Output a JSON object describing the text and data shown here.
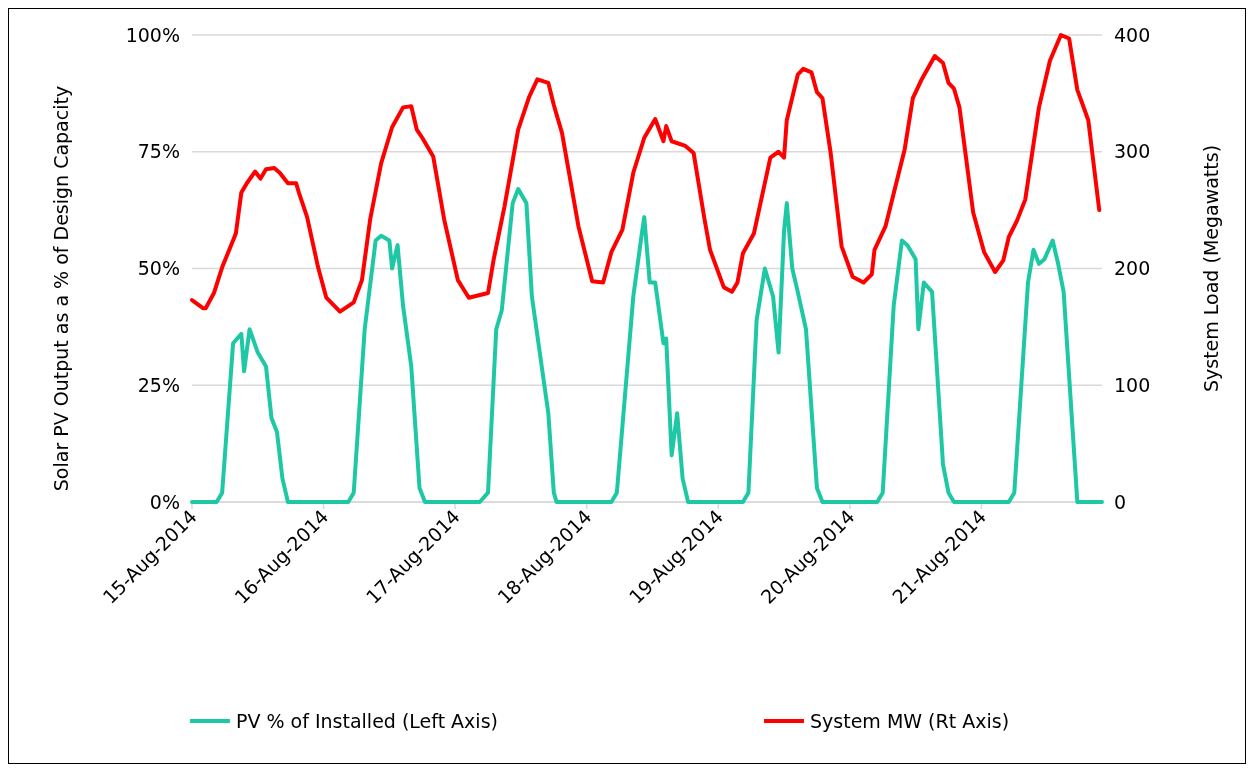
{
  "chart_data": {
    "type": "line",
    "ylabel": "Solar PV Output as a % of Design Capacity",
    "y2label": "System Load (Megawatts)",
    "xlim": [
      "2014-08-15T00:00",
      "2014-08-21T22:00"
    ],
    "xticks": [
      {
        "value": "2014-08-15",
        "label": "15-Aug-2014"
      },
      {
        "value": "2014-08-16",
        "label": "16-Aug-2014"
      },
      {
        "value": "2014-08-17",
        "label": "17-Aug-2014"
      },
      {
        "value": "2014-08-18",
        "label": "18-Aug-2014"
      },
      {
        "value": "2014-08-19",
        "label": "19-Aug-2014"
      },
      {
        "value": "2014-08-20",
        "label": "20-Aug-2014"
      },
      {
        "value": "2014-08-21",
        "label": "21-Aug-2014"
      }
    ],
    "ylim": [
      0,
      100
    ],
    "yticks": [
      {
        "value": 0,
        "label": "0%"
      },
      {
        "value": 25,
        "label": "25%"
      },
      {
        "value": 50,
        "label": "50%"
      },
      {
        "value": 75,
        "label": "75%"
      },
      {
        "value": 100,
        "label": "100%"
      }
    ],
    "y2lim": [
      0,
      400
    ],
    "y2ticks": [
      0,
      100,
      200,
      300,
      400
    ],
    "grid": "y",
    "legend": "bottom",
    "marker": "none",
    "line_style": "solid",
    "series": [
      {
        "name": "PV % of Installed (Left Axis)",
        "color": "#1ec8a5",
        "x": [
          "2014-08-15T00:00",
          "2014-08-15T04:30",
          "2014-08-15T05:30",
          "2014-08-15T07:30",
          "2014-08-15T09:00",
          "2014-08-15T09:30",
          "2014-08-15T10:30",
          "2014-08-15T12:00",
          "2014-08-15T13:30",
          "2014-08-15T14:30",
          "2014-08-15T15:30",
          "2014-08-15T16:30",
          "2014-08-15T17:30",
          "2014-08-16T04:30",
          "2014-08-16T05:30",
          "2014-08-16T07:30",
          "2014-08-16T09:30",
          "2014-08-16T10:30",
          "2014-08-16T12:00",
          "2014-08-16T12:30",
          "2014-08-16T13:30",
          "2014-08-16T14:30",
          "2014-08-16T16:00",
          "2014-08-16T17:30",
          "2014-08-16T18:30",
          "2014-08-17T04:30",
          "2014-08-17T06:00",
          "2014-08-17T07:30",
          "2014-08-17T08:30",
          "2014-08-17T10:30",
          "2014-08-17T11:30",
          "2014-08-17T13:00",
          "2014-08-17T14:00",
          "2014-08-17T17:00",
          "2014-08-17T18:00",
          "2014-08-17T18:30",
          "2014-08-18T04:30",
          "2014-08-18T05:30",
          "2014-08-18T08:30",
          "2014-08-18T10:00",
          "2014-08-18T10:30",
          "2014-08-18T11:30",
          "2014-08-18T12:30",
          "2014-08-18T14:00",
          "2014-08-18T14:30",
          "2014-08-18T15:30",
          "2014-08-18T16:30",
          "2014-08-18T17:30",
          "2014-08-18T18:30",
          "2014-08-19T04:30",
          "2014-08-19T05:30",
          "2014-08-19T07:00",
          "2014-08-19T08:30",
          "2014-08-19T10:00",
          "2014-08-19T11:00",
          "2014-08-19T12:00",
          "2014-08-19T12:30",
          "2014-08-19T13:30",
          "2014-08-19T14:30",
          "2014-08-19T16:00",
          "2014-08-19T18:00",
          "2014-08-19T19:00",
          "2014-08-20T05:00",
          "2014-08-20T06:00",
          "2014-08-20T08:00",
          "2014-08-20T09:30",
          "2014-08-20T10:30",
          "2014-08-20T12:00",
          "2014-08-20T12:30",
          "2014-08-20T13:30",
          "2014-08-20T15:00",
          "2014-08-20T17:00",
          "2014-08-20T18:00",
          "2014-08-20T19:00",
          "2014-08-21T05:00",
          "2014-08-21T06:00",
          "2014-08-21T08:30",
          "2014-08-21T09:30",
          "2014-08-21T10:30",
          "2014-08-21T11:30",
          "2014-08-21T13:00",
          "2014-08-21T14:00",
          "2014-08-21T15:00",
          "2014-08-21T17:30",
          "2014-08-21T22:00"
        ],
        "values": [
          0,
          0,
          2,
          34,
          36,
          28,
          37,
          32,
          29,
          18,
          15,
          5,
          0,
          0,
          2,
          37,
          56,
          57,
          56,
          50,
          55,
          42,
          29,
          3,
          0,
          0,
          2,
          37,
          41,
          64,
          67,
          64,
          44,
          19,
          2,
          0,
          0,
          2,
          44,
          57,
          61,
          47,
          47,
          34,
          35,
          10,
          19,
          5,
          0,
          0,
          2,
          39,
          50,
          44,
          32,
          58,
          64,
          50,
          45,
          37,
          3,
          0,
          0,
          2,
          42,
          56,
          55,
          52,
          37,
          47,
          45,
          8,
          2,
          0,
          0,
          2,
          47,
          54,
          51,
          52,
          56,
          51,
          45,
          0,
          0
        ]
      },
      {
        "name": "System MW (Rt Axis)",
        "color": "#ff0000",
        "axis": "y2",
        "x": [
          "2014-08-15T00:00",
          "2014-08-15T02:00",
          "2014-08-15T02:30",
          "2014-08-15T04:00",
          "2014-08-15T05:30",
          "2014-08-15T08:00",
          "2014-08-15T09:00",
          "2014-08-15T10:00",
          "2014-08-15T11:30",
          "2014-08-15T12:30",
          "2014-08-15T13:30",
          "2014-08-15T15:00",
          "2014-08-15T16:00",
          "2014-08-15T17:30",
          "2014-08-15T19:00",
          "2014-08-15T19:30",
          "2014-08-15T21:00",
          "2014-08-15T23:00",
          "2014-08-16T00:30",
          "2014-08-16T03:00",
          "2014-08-16T05:30",
          "2014-08-16T07:00",
          "2014-08-16T08:30",
          "2014-08-16T10:30",
          "2014-08-16T12:30",
          "2014-08-16T14:30",
          "2014-08-16T16:00",
          "2014-08-16T17:00",
          "2014-08-16T18:00",
          "2014-08-16T20:00",
          "2014-08-16T22:00",
          "2014-08-17T00:30",
          "2014-08-17T02:30",
          "2014-08-17T06:00",
          "2014-08-17T07:00",
          "2014-08-17T09:00",
          "2014-08-17T11:30",
          "2014-08-17T13:30",
          "2014-08-17T15:00",
          "2014-08-17T17:00",
          "2014-08-17T18:00",
          "2014-08-17T19:30",
          "2014-08-17T22:30",
          "2014-08-18T01:00",
          "2014-08-18T03:00",
          "2014-08-18T04:30",
          "2014-08-18T06:30",
          "2014-08-18T08:30",
          "2014-08-18T10:30",
          "2014-08-18T12:30",
          "2014-08-18T14:00",
          "2014-08-18T14:30",
          "2014-08-18T15:30",
          "2014-08-18T18:00",
          "2014-08-18T19:30",
          "2014-08-18T21:30",
          "2014-08-18T22:30",
          "2014-08-19T01:00",
          "2014-08-19T02:30",
          "2014-08-19T03:30",
          "2014-08-19T04:30",
          "2014-08-19T06:30",
          "2014-08-19T09:30",
          "2014-08-19T11:00",
          "2014-08-19T12:00",
          "2014-08-19T12:30",
          "2014-08-19T14:30",
          "2014-08-19T15:30",
          "2014-08-19T17:00",
          "2014-08-19T18:00",
          "2014-08-19T19:00",
          "2014-08-19T20:30",
          "2014-08-19T22:30",
          "2014-08-20T00:30",
          "2014-08-20T02:30",
          "2014-08-20T04:00",
          "2014-08-20T04:30",
          "2014-08-20T06:30",
          "2014-08-20T10:00",
          "2014-08-20T11:30",
          "2014-08-20T13:00",
          "2014-08-20T15:30",
          "2014-08-20T17:00",
          "2014-08-20T18:00",
          "2014-08-20T19:00",
          "2014-08-20T20:00",
          "2014-08-20T22:30",
          "2014-08-21T00:30",
          "2014-08-21T02:30",
          "2014-08-21T04:00",
          "2014-08-21T05:00",
          "2014-08-21T06:30",
          "2014-08-21T08:00",
          "2014-08-21T10:30",
          "2014-08-21T12:30",
          "2014-08-21T14:30",
          "2014-08-21T16:00",
          "2014-08-21T17:30",
          "2014-08-21T19:30",
          "2014-08-21T21:30"
        ],
        "values": [
          173,
          166,
          166,
          179,
          201,
          230,
          265,
          273,
          283,
          277,
          285,
          286,
          282,
          273,
          273,
          265,
          244,
          201,
          175,
          163,
          171,
          190,
          242,
          290,
          321,
          338,
          339,
          319,
          312,
          296,
          242,
          190,
          175,
          179,
          207,
          253,
          319,
          347,
          362,
          359,
          340,
          316,
          236,
          189,
          188,
          214,
          233,
          282,
          312,
          328,
          309,
          322,
          309,
          305,
          299,
          242,
          216,
          184,
          180,
          188,
          213,
          230,
          295,
          300,
          295,
          327,
          366,
          371,
          368,
          351,
          346,
          299,
          219,
          193,
          188,
          195,
          216,
          236,
          302,
          346,
          361,
          382,
          376,
          359,
          354,
          338,
          248,
          214,
          197,
          207,
          227,
          241,
          259,
          338,
          378,
          400,
          397,
          353,
          327,
          250
        ]
      }
    ]
  }
}
